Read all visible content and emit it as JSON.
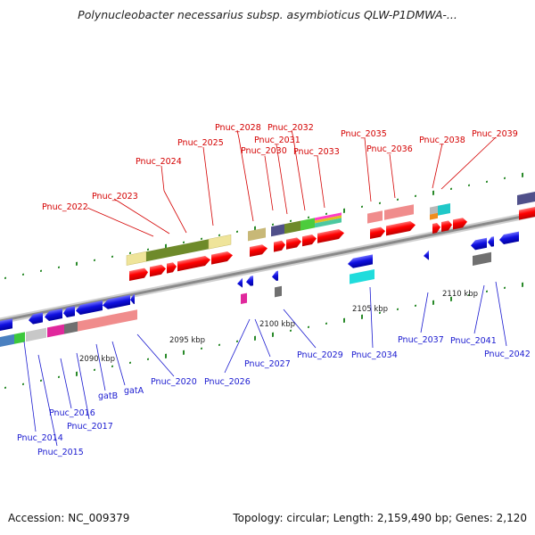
{
  "title": "Polynucleobacter necessarius subsp. asymbioticus QLW-P1DMWA-...",
  "footer": {
    "accession": "Accession: NC_009379",
    "topology": "Topology: circular; Length: 2,159,490 bp; Genes: 2,120"
  },
  "colors": {
    "top_label": "#d40000",
    "bottom_label": "#1a1ad0",
    "forward_gene": "#ff0000",
    "reverse_gene": "#1010e0",
    "axis": "#8a8a8a",
    "tick_dot": "#2a8a2a"
  },
  "ticks": [
    "2090 kbp",
    "2095 kbp",
    "2100 kbp",
    "2105 kbp",
    "2110 kbp"
  ],
  "labels_top": [
    "Pnuc_2022",
    "Pnuc_2023",
    "Pnuc_2024",
    "Pnuc_2025",
    "Pnuc_2028",
    "Pnuc_2030",
    "Pnuc_2031",
    "Pnuc_2032",
    "Pnuc_2033",
    "Pnuc_2035",
    "Pnuc_2036",
    "Pnuc_2038",
    "Pnuc_2039"
  ],
  "labels_bottom": [
    "Pnuc_2014",
    "Pnuc_2015",
    "Pnuc_2016",
    "Pnuc_2017",
    "gatB",
    "gatA",
    "Pnuc_2020",
    "Pnuc_2026",
    "Pnuc_2027",
    "Pnuc_2029",
    "Pnuc_2034",
    "Pnuc_2037",
    "Pnuc_2041",
    "Pnuc_2042"
  ]
}
